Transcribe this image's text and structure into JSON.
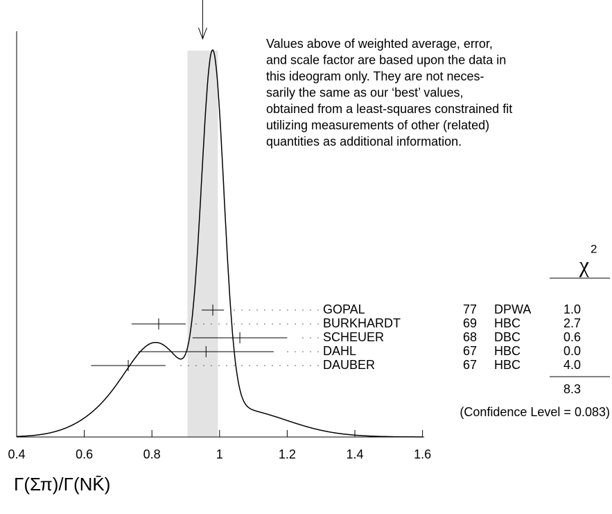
{
  "chart_data": {
    "type": "ideogram",
    "xlim": [
      0.4,
      1.6
    ],
    "xticks": [
      0.4,
      0.6,
      0.8,
      1,
      1.2,
      1.4,
      1.6
    ],
    "x_label": "Γ(Σπ)/Γ(NK̄)",
    "weighted_average": {
      "value": 0.95,
      "error": 0.045
    },
    "note": [
      "Values above of weighted average, error,",
      "and scale factor are based upon the data in",
      "this ideogram only.  They are not neces-",
      "sarily the same as our ‘best’ values,",
      "obtained from a least-squares constrained fit",
      "utilizing measurements of other (related)",
      "quantities as additional information."
    ],
    "chi2_header": "χ",
    "chi2_header_exp": "2",
    "measurements": [
      {
        "name": "GOPAL",
        "year": "77",
        "technique": "DPWA",
        "value": 0.98,
        "error": 0.033,
        "chi2": "1.0"
      },
      {
        "name": "BURKHARDT",
        "year": "69",
        "technique": "HBC",
        "value": 0.82,
        "error": 0.08,
        "chi2": "2.7"
      },
      {
        "name": "SCHEUER",
        "year": "68",
        "technique": "DBC",
        "value": 1.06,
        "error": 0.14,
        "chi2": "0.6"
      },
      {
        "name": "DAHL",
        "year": "67",
        "technique": "HBC",
        "value": 0.96,
        "error": 0.2,
        "chi2": "0.0"
      },
      {
        "name": "DAUBER",
        "year": "67",
        "technique": "HBC",
        "value": 0.73,
        "error": 0.11,
        "chi2": "4.0"
      }
    ],
    "chi2_total": "8.3",
    "confidence": "(Confidence Level = 0.083)"
  }
}
